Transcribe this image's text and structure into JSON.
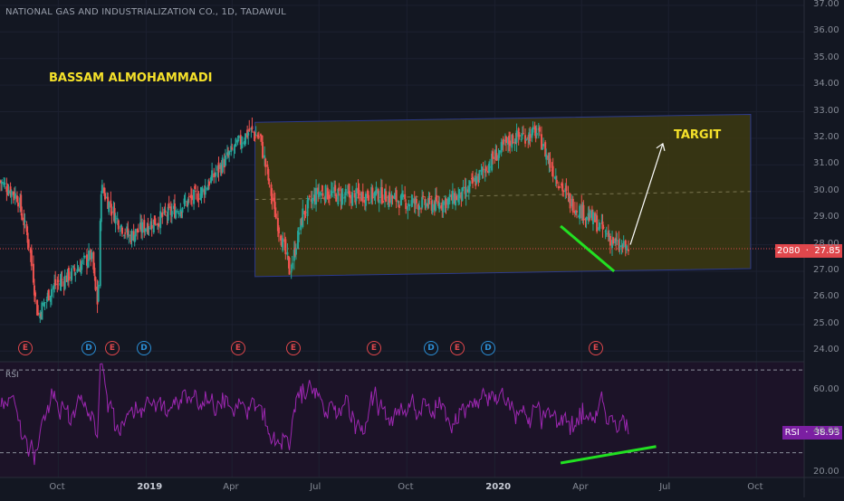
{
  "header": {
    "title": "NATIONAL GAS AND INDUSTRIALIZATION CO., 1D, TADAWUL"
  },
  "annotations": {
    "author": "BASSAM ALMOHAMMADI",
    "target": "TARGIT"
  },
  "price_badge": {
    "ticker": "2080",
    "price": "27.85"
  },
  "rsi_badge": {
    "label": "RSI",
    "value": "38.93"
  },
  "rsi_title": "RSI",
  "colors": {
    "background": "#131722",
    "channel_fill": "#3d3a10",
    "bull": "#26a69a",
    "bear": "#ef5350",
    "rsi_line": "#9c27b0",
    "divergence": "#22e022",
    "target_arrow": "#ffffff",
    "label_yellow": "#f5e12a"
  },
  "events": [
    {
      "type": "E"
    },
    {
      "type": "D"
    },
    {
      "type": "E"
    },
    {
      "type": "D"
    },
    {
      "type": "E"
    },
    {
      "type": "E"
    },
    {
      "type": "E"
    },
    {
      "type": "D"
    },
    {
      "type": "E"
    },
    {
      "type": "D"
    },
    {
      "type": "E"
    }
  ],
  "chart_data": [
    {
      "type": "candlestick",
      "title": "NATIONAL GAS AND INDUSTRIALIZATION CO., 1D, TADAWUL",
      "y_ticks": [
        "24.00",
        "25.00",
        "26.00",
        "27.00",
        "28.00",
        "29.00",
        "30.00",
        "31.00",
        "32.00",
        "33.00",
        "34.00",
        "35.00",
        "36.00",
        "37.00"
      ],
      "x_ticks": [
        "Oct",
        "2019",
        "Apr",
        "Jul",
        "Oct",
        "2020",
        "Apr",
        "Jul",
        "Oct"
      ],
      "ylim": [
        23.6,
        37.2
      ],
      "last_price": 27.85,
      "approx_close_path": [
        {
          "x": "2018-08",
          "y": 30.4
        },
        {
          "x": "2018-08-20",
          "y": 29.8
        },
        {
          "x": "2018-09-01",
          "y": 28.0
        },
        {
          "x": "2018-09-10",
          "y": 25.3
        },
        {
          "x": "2018-09-25",
          "y": 26.4
        },
        {
          "x": "2018-10-15",
          "y": 26.9
        },
        {
          "x": "2018-11-05",
          "y": 27.6
        },
        {
          "x": "2018-11-12",
          "y": 25.6
        },
        {
          "x": "2018-11-15",
          "y": 30.2
        },
        {
          "x": "2018-12-01",
          "y": 29.0
        },
        {
          "x": "2018-12-15",
          "y": 28.3
        },
        {
          "x": "2019-01-01",
          "y": 28.7
        },
        {
          "x": "2019-02-01",
          "y": 29.3
        },
        {
          "x": "2019-03-01",
          "y": 30.0
        },
        {
          "x": "2019-04-01",
          "y": 31.5
        },
        {
          "x": "2019-04-20",
          "y": 32.3
        },
        {
          "x": "2019-05-01",
          "y": 32.0
        },
        {
          "x": "2019-05-15",
          "y": 29.4
        },
        {
          "x": "2019-06-01",
          "y": 27.0
        },
        {
          "x": "2019-06-15",
          "y": 29.2
        },
        {
          "x": "2019-07-01",
          "y": 30.0
        },
        {
          "x": "2019-08-01",
          "y": 29.8
        },
        {
          "x": "2019-09-01",
          "y": 29.9
        },
        {
          "x": "2019-10-01",
          "y": 29.6
        },
        {
          "x": "2019-11-01",
          "y": 29.5
        },
        {
          "x": "2019-12-01",
          "y": 29.9
        },
        {
          "x": "2020-01-01",
          "y": 31.3
        },
        {
          "x": "2020-01-20",
          "y": 32.0
        },
        {
          "x": "2020-02-15",
          "y": 32.2
        },
        {
          "x": "2020-03-01",
          "y": 30.9
        },
        {
          "x": "2020-03-20",
          "y": 29.6
        },
        {
          "x": "2020-04-15",
          "y": 28.9
        },
        {
          "x": "2020-05-10",
          "y": 27.9
        },
        {
          "x": "2020-05-20",
          "y": 27.85
        }
      ],
      "channel": {
        "upper": [
          32.6,
          32.9
        ],
        "lower": [
          26.8,
          27.1
        ],
        "mid": [
          29.7,
          30.0
        ]
      },
      "divergence_line_price": [
        28.7,
        27.0
      ],
      "target_arrow": [
        28.0,
        31.8
      ]
    },
    {
      "type": "line",
      "title": "RSI",
      "y_ticks": [
        "20.00",
        "40.00",
        "60.00"
      ],
      "ylim": [
        18,
        74
      ],
      "bands": [
        30,
        70
      ],
      "last_value": 38.93,
      "divergence_line_rsi": [
        25.0,
        33.0
      ]
    }
  ]
}
